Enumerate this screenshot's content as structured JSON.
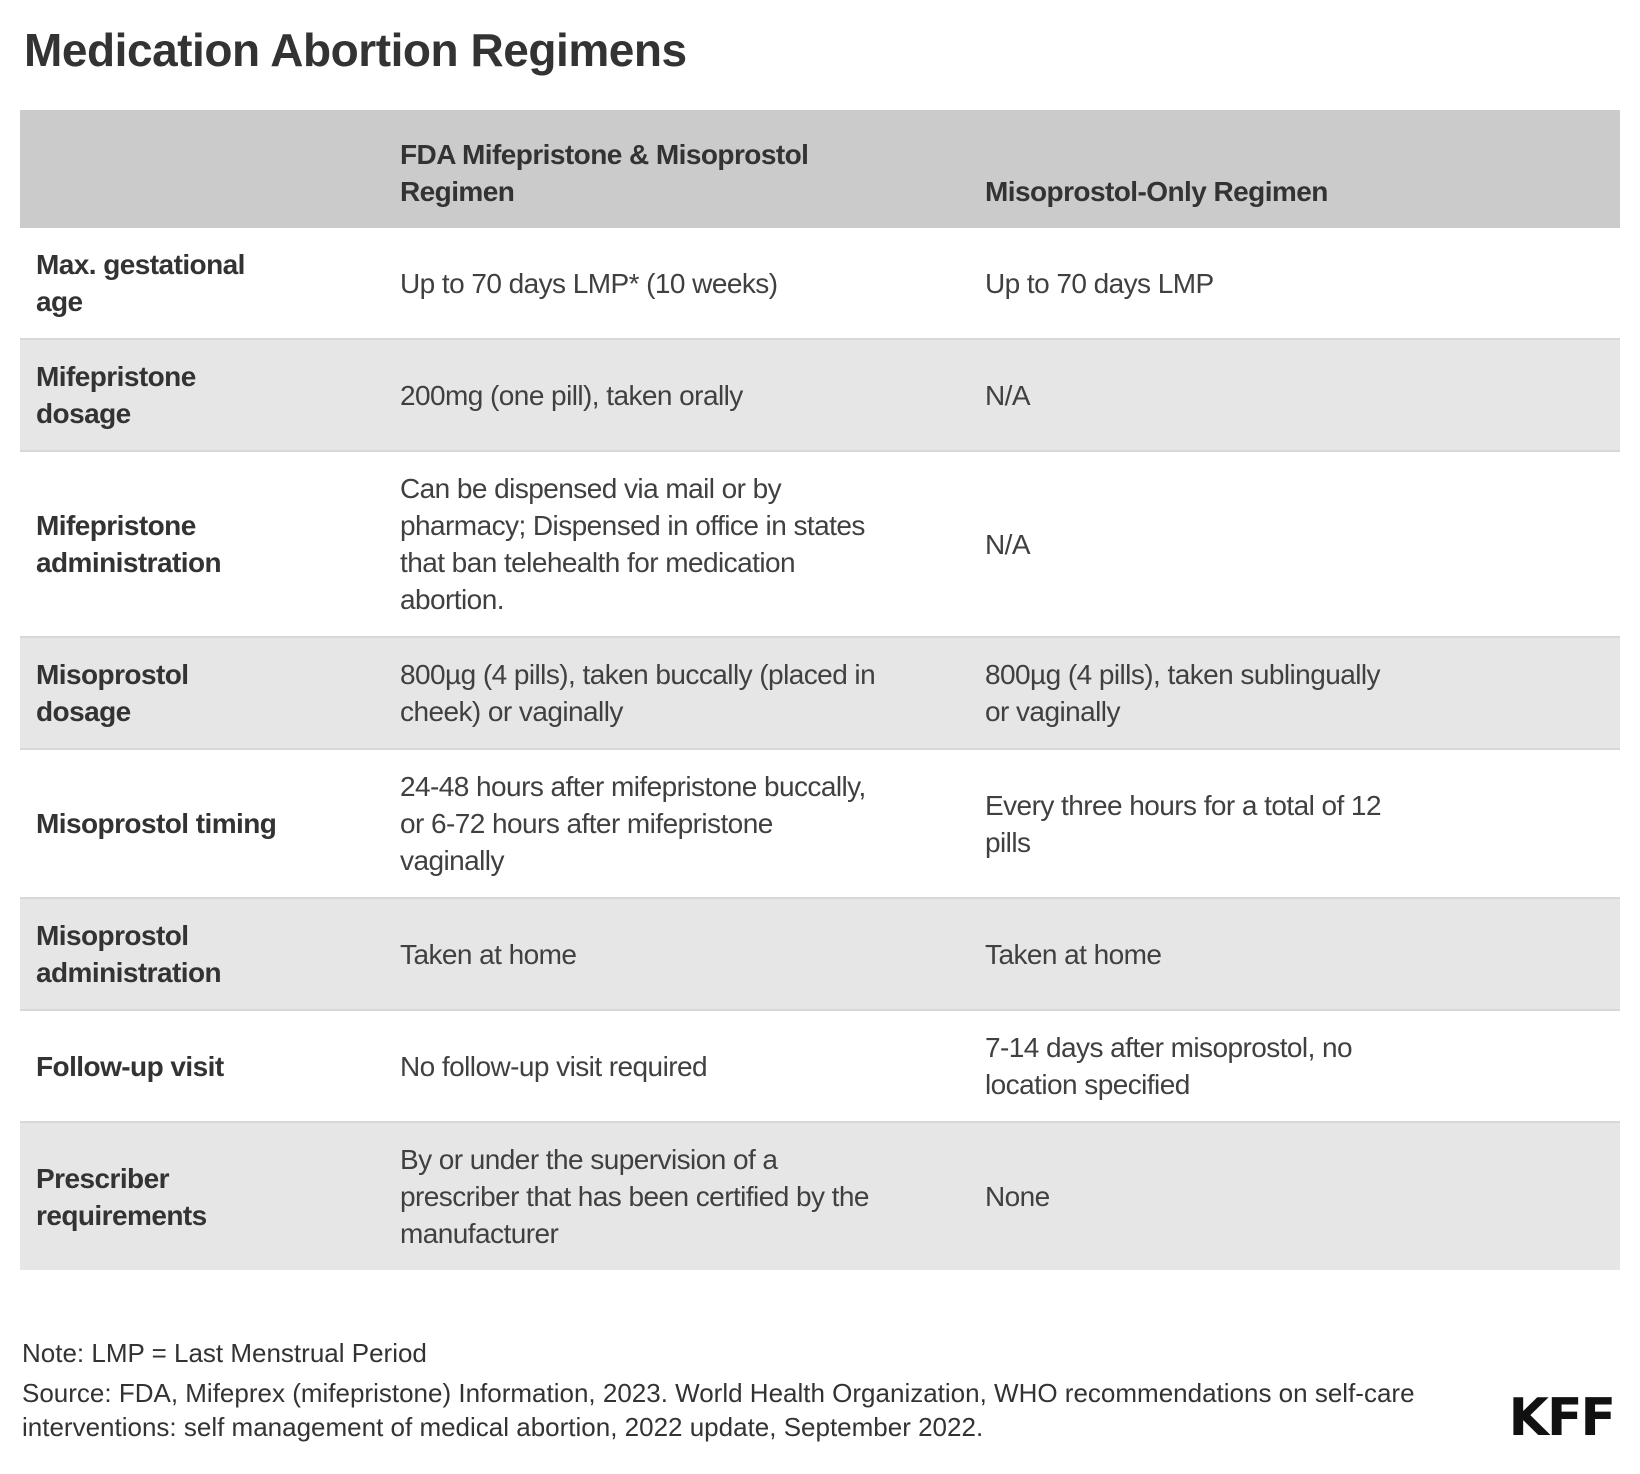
{
  "chart_data": {
    "type": "table",
    "title": "Medication Abortion Regimens",
    "columns": [
      "",
      "FDA Mifepristone & Misoprostol\nRegimen",
      "Misoprostol-Only Regimen"
    ],
    "rows": [
      {
        "label": "Max. gestational\nage",
        "fda_regimen": "Up to 70 days LMP* (10 weeks)",
        "misoprostol_only": "Up to 70 days LMP"
      },
      {
        "label": "Mifepristone\ndosage",
        "fda_regimen": "200mg (one pill), taken orally",
        "misoprostol_only": "N/A"
      },
      {
        "label": "Mifepristone\nadministration",
        "fda_regimen": "Can be dispensed via mail or by\npharmacy; Dispensed in office in states\nthat ban telehealth for medication\nabortion.",
        "misoprostol_only": "N/A"
      },
      {
        "label": "Misoprostol\ndosage",
        "fda_regimen": "800µg (4 pills), taken buccally (placed in\ncheek) or vaginally",
        "misoprostol_only": "800µg (4 pills), taken sublingually\nor vaginally"
      },
      {
        "label": "Misoprostol timing",
        "fda_regimen": "24-48 hours after mifepristone buccally,\nor 6-72 hours after mifepristone\nvaginally",
        "misoprostol_only": "Every three hours for a total of 12\npills"
      },
      {
        "label": "Misoprostol\nadministration",
        "fda_regimen": "Taken at home",
        "misoprostol_only": "Taken at home"
      },
      {
        "label": "Follow-up visit",
        "fda_regimen": "No follow-up visit required",
        "misoprostol_only": "7-14 days after misoprostol, no\nlocation specified"
      },
      {
        "label": "Prescriber\nrequirements",
        "fda_regimen": "By or under the supervision of a\nprescriber that has been certified by the\nmanufacturer",
        "misoprostol_only": "None"
      }
    ],
    "note": "Note: LMP = Last Menstrual Period",
    "source": "Source: FDA, Mifeprex (mifepristone) Information, 2023. World Health Organization, WHO recommendations on self-care\ninterventions: self management of medical abortion, 2022 update, September 2022.",
    "logo": "KFF",
    "layout": {
      "legend": "none",
      "grid": "row-stripes"
    },
    "colors": {
      "header_bg": "#cbcbcb",
      "alt_row_bg": "#e6e6e6",
      "row_border": "#d8d8d8",
      "heading_text": "#333333",
      "body_text": "#404040",
      "logo_color": "#111111"
    }
  }
}
